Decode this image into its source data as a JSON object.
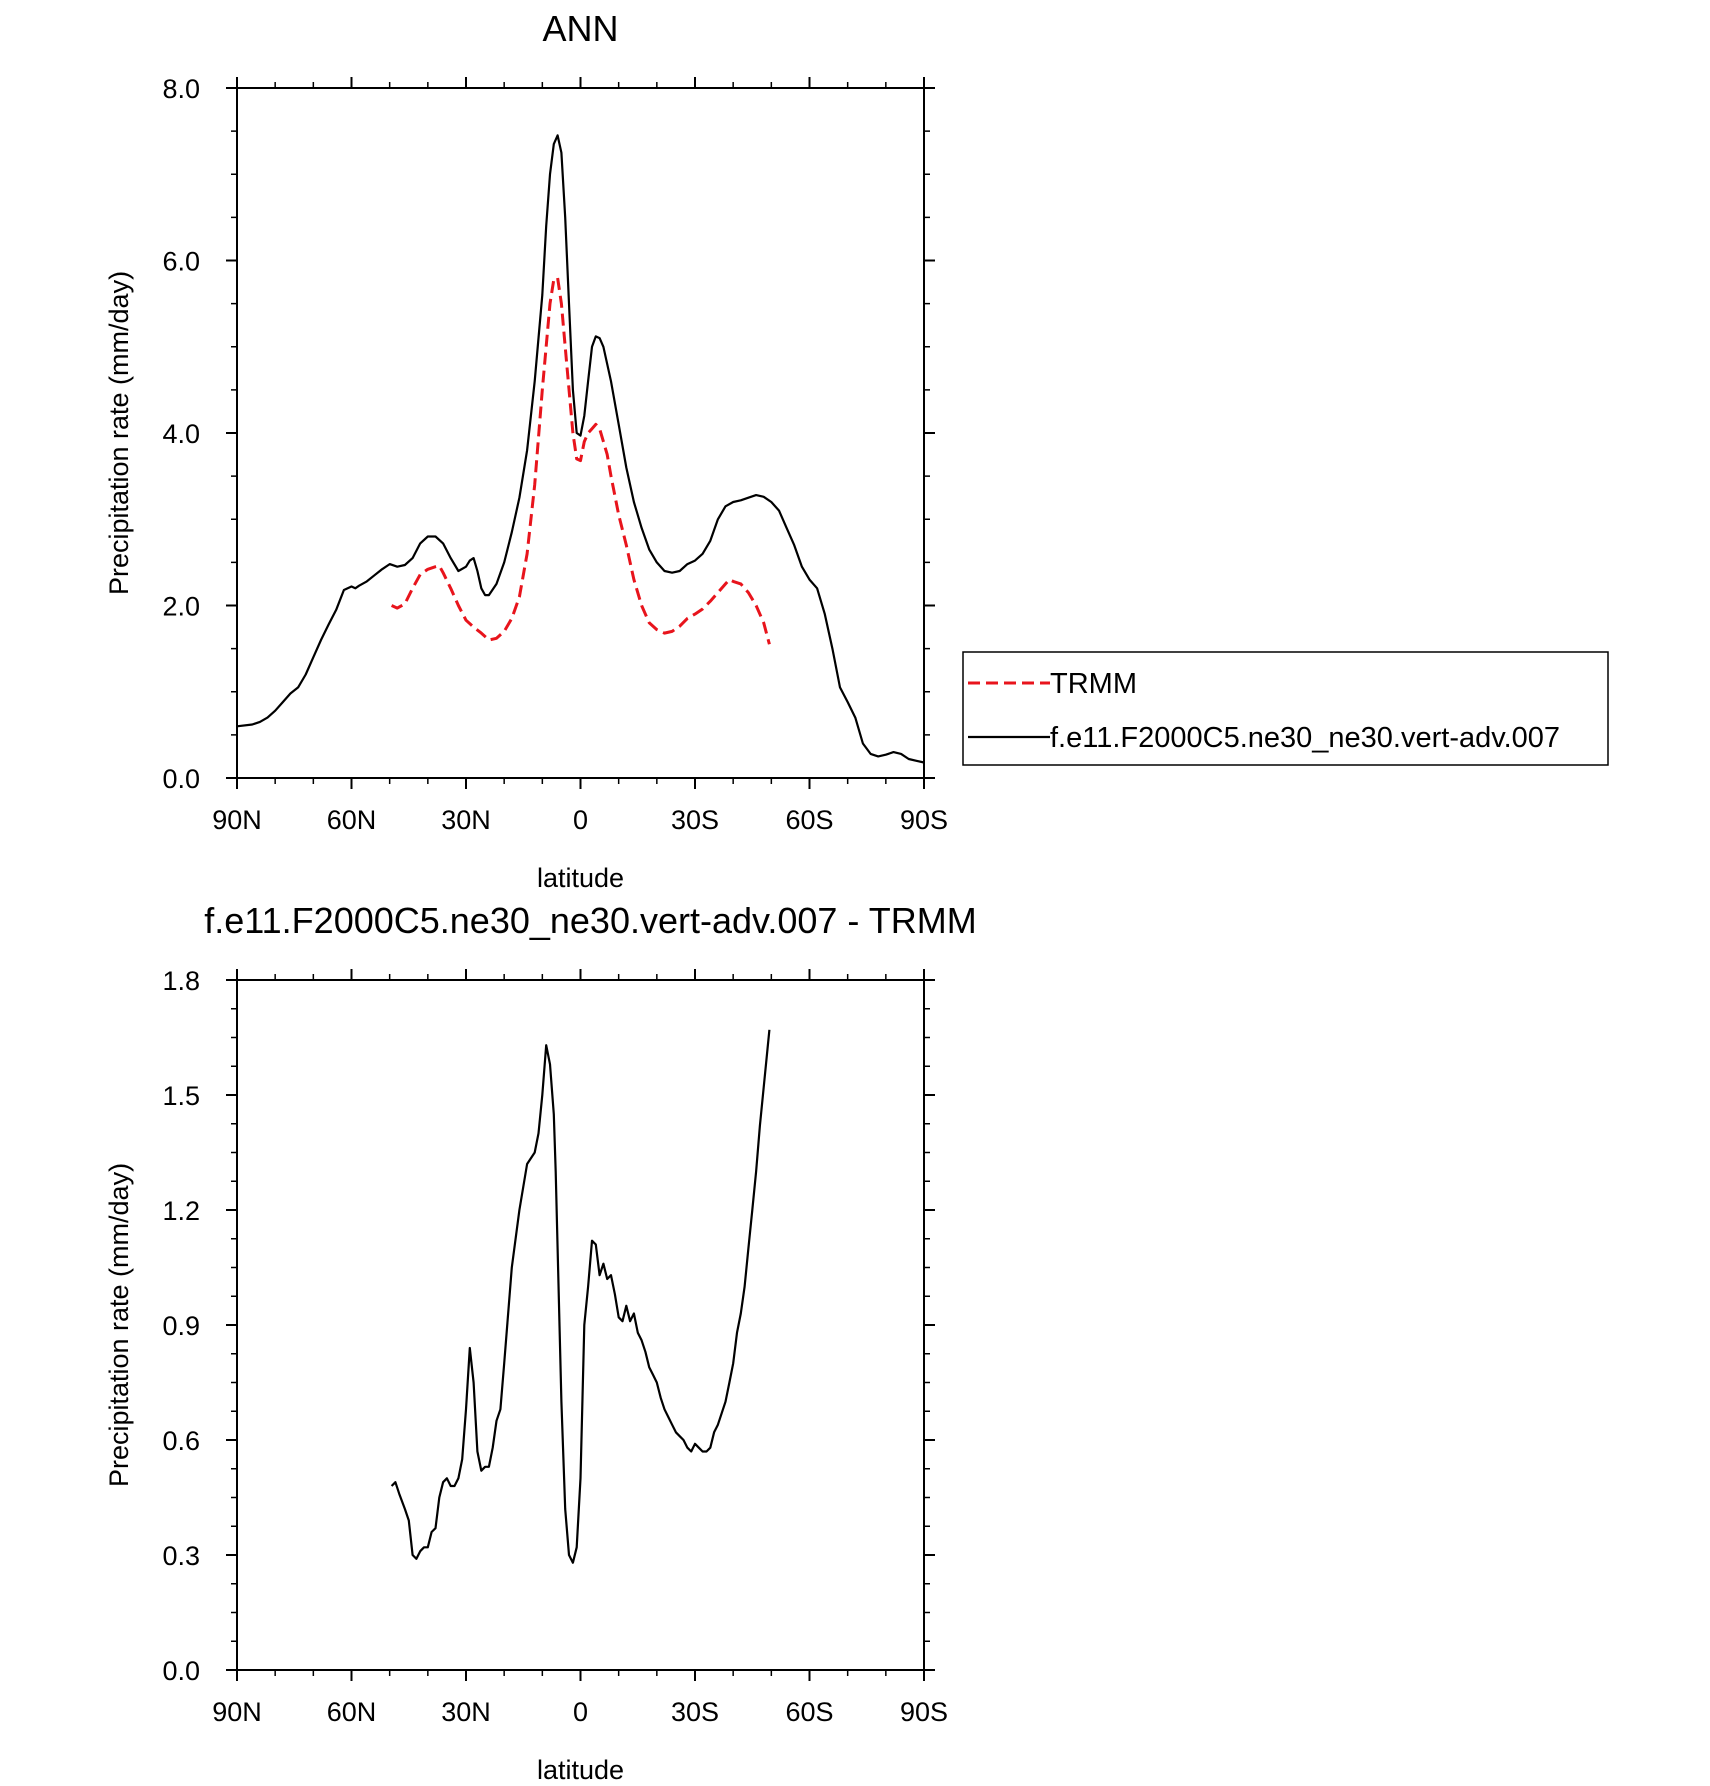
{
  "chart_data": [
    {
      "type": "line",
      "title": "ANN",
      "xlabel": "latitude",
      "ylabel": "Precipitation rate (mm/day)",
      "xlim": [
        90,
        -90
      ],
      "ylim": [
        0,
        8
      ],
      "xticks": [
        90,
        60,
        30,
        0,
        -30,
        -60,
        -90
      ],
      "xtick_labels": [
        "90N",
        "60N",
        "30N",
        "0",
        "30S",
        "60S",
        "90S"
      ],
      "yticks": [
        0,
        2,
        4,
        6,
        8
      ],
      "ytick_labels": [
        "0.0",
        "2.0",
        "4.0",
        "6.0",
        "8.0"
      ],
      "grid": false,
      "legend_position": "right",
      "series": [
        {
          "name": "TRMM",
          "color": "#e8141c",
          "dash": "dashed",
          "x": [
            49.5,
            48,
            46,
            44,
            42,
            40,
            38,
            37,
            36,
            34,
            32,
            30,
            28,
            26,
            24,
            22,
            20,
            18,
            16,
            14,
            12,
            10,
            8,
            7,
            6,
            5,
            4,
            2,
            1,
            0,
            -1,
            -2,
            -3,
            -4,
            -5,
            -6,
            -7,
            -8,
            -10,
            -12,
            -14,
            -16,
            -18,
            -20,
            -22,
            -24,
            -26,
            -28,
            -30,
            -32,
            -34,
            -36,
            -38,
            -39,
            -40,
            -42,
            -44,
            -46,
            -48,
            -49.5
          ],
          "y": [
            2.0,
            1.97,
            2.02,
            2.2,
            2.36,
            2.42,
            2.45,
            2.46,
            2.38,
            2.2,
            2.0,
            1.83,
            1.75,
            1.68,
            1.6,
            1.62,
            1.7,
            1.85,
            2.1,
            2.6,
            3.4,
            4.5,
            5.5,
            5.78,
            5.8,
            5.5,
            5.0,
            4.0,
            3.7,
            3.68,
            3.9,
            4.0,
            4.05,
            4.1,
            4.05,
            3.9,
            3.75,
            3.5,
            3.05,
            2.7,
            2.3,
            2.0,
            1.8,
            1.72,
            1.68,
            1.7,
            1.76,
            1.85,
            1.9,
            1.96,
            2.05,
            2.15,
            2.25,
            2.3,
            2.28,
            2.25,
            2.15,
            2.0,
            1.8,
            1.55
          ]
        },
        {
          "name": "f.e11.F2000C5.ne30_ne30.vert-adv.007",
          "color": "#000000",
          "dash": "solid",
          "x": [
            90,
            86,
            84,
            82,
            80,
            78,
            76,
            74,
            72,
            70,
            68,
            66,
            64,
            62,
            60,
            59,
            58,
            56,
            54,
            52,
            50,
            48,
            46,
            44,
            42,
            40,
            38,
            36,
            34,
            32,
            30,
            29,
            28,
            27,
            26,
            25,
            24,
            22,
            20,
            18,
            16,
            14,
            12,
            10,
            9,
            8,
            7,
            6,
            5,
            4,
            3,
            2,
            1,
            0,
            -1,
            -2,
            -3,
            -4,
            -5,
            -6,
            -8,
            -10,
            -12,
            -14,
            -16,
            -18,
            -20,
            -22,
            -24,
            -26,
            -28,
            -30,
            -32,
            -34,
            -36,
            -38,
            -40,
            -42,
            -44,
            -46,
            -48,
            -50,
            -52,
            -54,
            -56,
            -58,
            -60,
            -62,
            -64,
            -66,
            -68,
            -70,
            -72,
            -74,
            -76,
            -78,
            -80,
            -82,
            -84,
            -86,
            -88,
            -90
          ],
          "y": [
            0.6,
            0.62,
            0.65,
            0.7,
            0.78,
            0.88,
            0.98,
            1.05,
            1.2,
            1.4,
            1.6,
            1.78,
            1.95,
            2.18,
            2.22,
            2.2,
            2.23,
            2.28,
            2.35,
            2.42,
            2.48,
            2.45,
            2.47,
            2.55,
            2.72,
            2.8,
            2.8,
            2.72,
            2.55,
            2.4,
            2.45,
            2.52,
            2.55,
            2.4,
            2.2,
            2.12,
            2.12,
            2.25,
            2.5,
            2.85,
            3.25,
            3.8,
            4.6,
            5.6,
            6.4,
            7.0,
            7.35,
            7.45,
            7.25,
            6.5,
            5.5,
            4.5,
            4.0,
            3.97,
            4.2,
            4.6,
            5.0,
            5.12,
            5.1,
            5.0,
            4.6,
            4.1,
            3.6,
            3.2,
            2.9,
            2.65,
            2.5,
            2.4,
            2.38,
            2.4,
            2.48,
            2.52,
            2.6,
            2.75,
            3.0,
            3.15,
            3.2,
            3.22,
            3.25,
            3.28,
            3.26,
            3.2,
            3.1,
            2.9,
            2.7,
            2.45,
            2.3,
            2.2,
            1.9,
            1.5,
            1.05,
            0.88,
            0.7,
            0.4,
            0.28,
            0.25,
            0.27,
            0.3,
            0.28,
            0.22,
            0.2,
            0.18
          ]
        }
      ]
    },
    {
      "type": "line",
      "title": "f.e11.F2000C5.ne30_ne30.vert-adv.007 - TRMM",
      "xlabel": "latitude",
      "ylabel": "Precipitation rate (mm/day)",
      "xlim": [
        90,
        -90
      ],
      "ylim": [
        0,
        1.8
      ],
      "xticks": [
        90,
        60,
        30,
        0,
        -30,
        -60,
        -90
      ],
      "xtick_labels": [
        "90N",
        "60N",
        "30N",
        "0",
        "30S",
        "60S",
        "90S"
      ],
      "yticks": [
        0,
        0.3,
        0.6,
        0.9,
        1.2,
        1.5,
        1.8
      ],
      "ytick_labels": [
        "0.0",
        "0.3",
        "0.6",
        "0.9",
        "1.2",
        "1.5",
        "1.8"
      ],
      "grid": false,
      "series": [
        {
          "color": "#000000",
          "dash": "solid",
          "x": [
            49.5,
            48.5,
            47.5,
            46,
            45,
            44,
            43,
            42,
            41,
            40,
            39,
            38,
            37,
            36,
            35,
            34,
            33,
            32,
            31,
            30,
            29,
            28,
            27,
            26,
            25,
            24,
            23,
            22,
            21,
            20,
            18,
            16,
            14,
            12,
            11,
            10,
            9,
            8,
            7,
            6.5,
            6,
            5,
            4,
            3,
            2,
            1,
            0,
            -1,
            -2,
            -3,
            -4,
            -5,
            -6,
            -7,
            -8,
            -9,
            -10,
            -11,
            -12,
            -13,
            -14,
            -15,
            -16,
            -17,
            -18,
            -19,
            -20,
            -21,
            -22,
            -23,
            -24,
            -25,
            -26,
            -27,
            -28,
            -29,
            -30,
            -31,
            -32,
            -33,
            -34,
            -35,
            -36,
            -37,
            -38,
            -39,
            -40,
            -41,
            -42,
            -43,
            -44,
            -45,
            -46,
            -47,
            -48,
            -49,
            -49.5
          ],
          "y": [
            0.48,
            0.49,
            0.46,
            0.42,
            0.39,
            0.3,
            0.29,
            0.31,
            0.32,
            0.32,
            0.36,
            0.37,
            0.45,
            0.49,
            0.5,
            0.48,
            0.48,
            0.5,
            0.55,
            0.68,
            0.84,
            0.75,
            0.57,
            0.52,
            0.53,
            0.53,
            0.58,
            0.65,
            0.68,
            0.8,
            1.05,
            1.2,
            1.32,
            1.35,
            1.4,
            1.5,
            1.63,
            1.58,
            1.45,
            1.3,
            1.1,
            0.7,
            0.42,
            0.3,
            0.28,
            0.32,
            0.5,
            0.9,
            1.0,
            1.12,
            1.11,
            1.03,
            1.06,
            1.02,
            1.03,
            0.98,
            0.92,
            0.91,
            0.95,
            0.91,
            0.93,
            0.88,
            0.86,
            0.83,
            0.79,
            0.77,
            0.75,
            0.71,
            0.68,
            0.66,
            0.64,
            0.62,
            0.61,
            0.6,
            0.58,
            0.57,
            0.59,
            0.58,
            0.57,
            0.57,
            0.58,
            0.62,
            0.64,
            0.67,
            0.7,
            0.75,
            0.8,
            0.88,
            0.93,
            1.0,
            1.1,
            1.2,
            1.3,
            1.42,
            1.52,
            1.62,
            1.67
          ]
        }
      ]
    }
  ]
}
